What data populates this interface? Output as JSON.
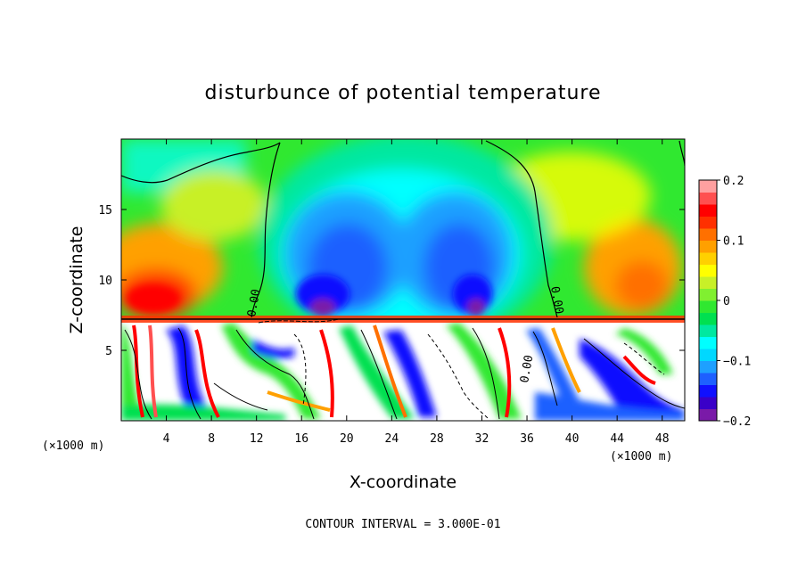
{
  "chart_data": {
    "type": "heatmap",
    "title": "disturbunce of potential temperature",
    "xlabel": "X-coordinate",
    "ylabel": "Z-coordinate",
    "x_unit_label": "(×1000 m)",
    "z_unit_label": "(×1000 m)",
    "xlim": [
      0,
      50
    ],
    "ylim": [
      0,
      20
    ],
    "x_ticks": [
      4,
      8,
      12,
      16,
      20,
      24,
      28,
      32,
      36,
      40,
      44,
      48
    ],
    "y_ticks": [
      5,
      10,
      15
    ],
    "colorbar": {
      "range": [
        -0.2,
        0.2
      ],
      "tick_values": [
        0.2,
        0.1,
        0,
        -0.1,
        -0.2
      ],
      "tick_labels": [
        "0.2",
        "0.1",
        "0",
        "−0.1",
        "−0.2"
      ],
      "colors": [
        "#7a1aa8",
        "#3a00c8",
        "#1010ff",
        "#1e60ff",
        "#1ea0ff",
        "#00d8ff",
        "#00ffff",
        "#00e8a0",
        "#00e050",
        "#30e830",
        "#80f030",
        "#c8f028",
        "#ffff00",
        "#ffd000",
        "#ffa000",
        "#ff7000",
        "#ff3000",
        "#ff0000",
        "#ff5050",
        "#ffa0a0"
      ]
    },
    "contour_interval_text": "CONTOUR INTERVAL = 3.000E-01",
    "contour_labels": [
      "0.00",
      "0.00",
      "0.00"
    ],
    "upper_layer_features": [
      {
        "kind": "cool_dome",
        "x_center": 25,
        "x_extent": [
          11,
          38
        ],
        "z_top": 20
      },
      {
        "kind": "cold_core",
        "x": 18.5,
        "z": 9,
        "value": -0.2
      },
      {
        "kind": "cold_core",
        "x": 31.5,
        "z": 9,
        "value": -0.2
      },
      {
        "kind": "warm_region",
        "x": 3.5,
        "z": 9.5,
        "value": 0.15
      },
      {
        "kind": "warm_region",
        "x": 46,
        "z": 10,
        "value": 0.12
      }
    ],
    "interface_height": 7.2
  }
}
